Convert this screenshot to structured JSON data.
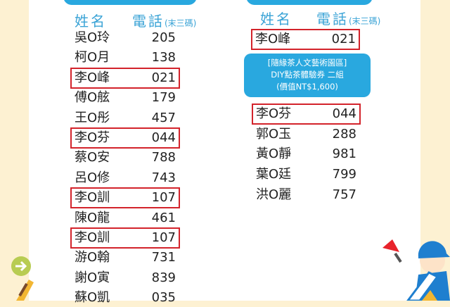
{
  "header": {
    "name": "姓名",
    "phone": "電話",
    "phone_note": "(末三碼)"
  },
  "left_list": [
    {
      "name": "吳O玲",
      "phone": "205",
      "highlight": false
    },
    {
      "name": "柯O月",
      "phone": "138",
      "highlight": false
    },
    {
      "name": "李O峰",
      "phone": "021",
      "highlight": true
    },
    {
      "name": "傅O舷",
      "phone": "179",
      "highlight": false
    },
    {
      "name": "王O彤",
      "phone": "457",
      "highlight": false
    },
    {
      "name": "李O芬",
      "phone": "044",
      "highlight": true
    },
    {
      "name": "蔡O安",
      "phone": "788",
      "highlight": false
    },
    {
      "name": "呂O修",
      "phone": "743",
      "highlight": false
    },
    {
      "name": "李O訓",
      "phone": "107",
      "highlight": true
    },
    {
      "name": "陳O龍",
      "phone": "461",
      "highlight": false
    },
    {
      "name": "李O訓",
      "phone": "107",
      "highlight": true
    },
    {
      "name": "游O翰",
      "phone": "731",
      "highlight": false
    },
    {
      "name": "謝O寅",
      "phone": "839",
      "highlight": false
    },
    {
      "name": "蘇O凱",
      "phone": "035",
      "highlight": false
    }
  ],
  "right_list_top": [
    {
      "name": "李O峰",
      "phone": "021",
      "highlight": true
    }
  ],
  "prize": {
    "line1": "[隨緣茶人文藝術園區]",
    "line2": "DIY點茶體驗券 二組",
    "line3": "(價值NT$1,600)"
  },
  "right_list_bottom": [
    {
      "name": "李O芬",
      "phone": "044",
      "highlight": true
    },
    {
      "name": "郭O玉",
      "phone": "288",
      "highlight": false
    },
    {
      "name": "黃O靜",
      "phone": "981",
      "highlight": false
    },
    {
      "name": "葉O廷",
      "phone": "799",
      "highlight": false
    },
    {
      "name": "洪O麗",
      "phone": "757",
      "highlight": false
    }
  ],
  "colors": {
    "accent": "#29a8df",
    "highlight": "#d3232b",
    "background": "#fdf1d2"
  }
}
